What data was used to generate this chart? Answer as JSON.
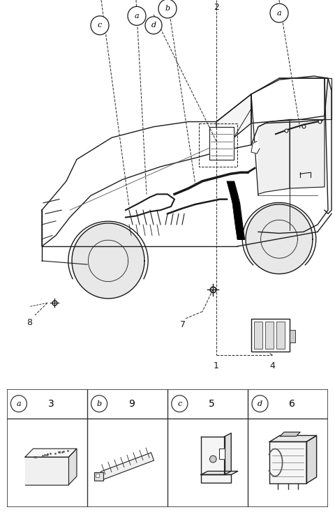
{
  "bg_color": "#ffffff",
  "fig_width": 4.8,
  "fig_height": 7.34,
  "dpi": 100,
  "table_items": [
    {
      "label": "a",
      "num": "3"
    },
    {
      "label": "b",
      "num": "9"
    },
    {
      "label": "c",
      "num": "5"
    },
    {
      "label": "d",
      "num": "6"
    }
  ],
  "line_color": "#1a1a1a",
  "gray_color": "#888888",
  "light_gray": "#cccccc"
}
